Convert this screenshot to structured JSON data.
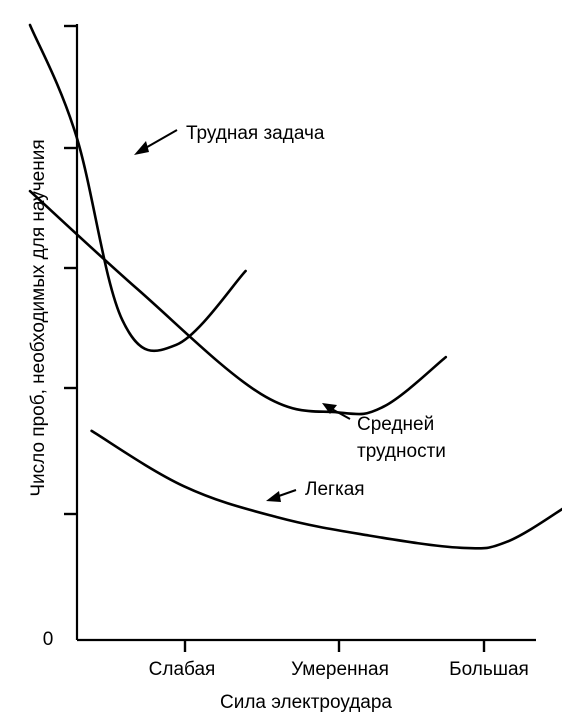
{
  "chart_data": {
    "type": "line",
    "title": "",
    "xlabel": "Сила электроудара",
    "ylabel": "Число проб, необходимых для научения",
    "categories": [
      "Слабая",
      "Умеренная",
      "Большая"
    ],
    "y_tick_labels": [
      "0"
    ],
    "grid": false,
    "legend": "none",
    "series": [
      {
        "name": "Трудная задача",
        "label_lines": [
          "Трудная задача"
        ],
        "x": [
          0.0,
          0.3,
          0.6,
          0.95,
          1.4
        ],
        "y": [
          10.0,
          8.2,
          5.2,
          4.8,
          6.0
        ]
      },
      {
        "name": "Средней трудности",
        "label_lines": [
          "Средней",
          "трудности"
        ],
        "x": [
          0.0,
          0.7,
          1.5,
          2.0,
          2.3,
          2.7
        ],
        "y": [
          7.3,
          5.7,
          4.0,
          3.7,
          3.8,
          4.6
        ]
      },
      {
        "name": "Легкая",
        "label_lines": [
          "Легкая"
        ],
        "x": [
          0.4,
          1.0,
          1.6,
          2.2,
          2.8,
          3.1,
          3.5
        ],
        "y": [
          3.4,
          2.5,
          2.0,
          1.7,
          1.5,
          1.6,
          2.2
        ]
      }
    ]
  }
}
